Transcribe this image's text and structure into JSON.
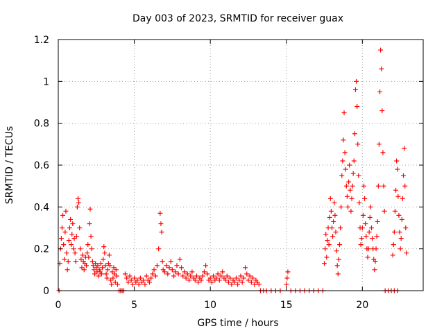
{
  "chart_data": {
    "type": "scatter",
    "title": "Day 003 of 2023, SRMTID for receiver guax",
    "xlabel": "GPS time / hours",
    "ylabel": "SRMTID / TECUs",
    "xlim": [
      0,
      24
    ],
    "ylim": [
      0,
      1.2
    ],
    "xticks": [
      0,
      5,
      10,
      15,
      20
    ],
    "xtick_labels": [
      "0",
      "5",
      "10",
      "15",
      "20"
    ],
    "yticks": [
      0,
      0.2,
      0.4,
      0.6,
      0.8,
      1,
      1.2
    ],
    "ytick_labels": [
      "0",
      "0.2",
      "0.4",
      "0.6",
      "0.8",
      "1",
      "1.2"
    ],
    "grid": true,
    "marker": "+",
    "series": [
      {
        "name": "SRMTID",
        "color": "#ff0000",
        "points": [
          [
            0.05,
            0.0
          ],
          [
            0.1,
            0.13
          ],
          [
            0.15,
            0.2
          ],
          [
            0.2,
            0.25
          ],
          [
            0.25,
            0.3
          ],
          [
            0.3,
            0.36
          ],
          [
            0.35,
            0.22
          ],
          [
            0.4,
            0.15
          ],
          [
            0.45,
            0.28
          ],
          [
            0.5,
            0.38
          ],
          [
            0.55,
            0.18
          ],
          [
            0.6,
            0.1
          ],
          [
            0.65,
            0.14
          ],
          [
            0.7,
            0.24
          ],
          [
            0.75,
            0.3
          ],
          [
            0.8,
            0.34
          ],
          [
            0.85,
            0.22
          ],
          [
            0.9,
            0.27
          ],
          [
            0.95,
            0.32
          ],
          [
            1.0,
            0.2
          ],
          [
            1.05,
            0.25
          ],
          [
            1.1,
            0.18
          ],
          [
            1.15,
            0.14
          ],
          [
            1.2,
            0.26
          ],
          [
            1.25,
            0.4
          ],
          [
            1.3,
            0.44
          ],
          [
            1.35,
            0.42
          ],
          [
            1.4,
            0.3
          ],
          [
            1.45,
            0.2
          ],
          [
            1.5,
            0.15
          ],
          [
            1.55,
            0.11
          ],
          [
            1.6,
            0.17
          ],
          [
            1.65,
            0.14
          ],
          [
            1.7,
            0.1
          ],
          [
            1.75,
            0.13
          ],
          [
            1.8,
            0.16
          ],
          [
            1.85,
            0.12
          ],
          [
            1.9,
            0.18
          ],
          [
            1.95,
            0.22
          ],
          [
            2.0,
            0.16
          ],
          [
            2.05,
            0.32
          ],
          [
            2.1,
            0.39
          ],
          [
            2.15,
            0.26
          ],
          [
            2.2,
            0.2
          ],
          [
            2.25,
            0.14
          ],
          [
            2.3,
            0.12
          ],
          [
            2.35,
            0.1
          ],
          [
            2.4,
            0.08
          ],
          [
            2.45,
            0.13
          ],
          [
            2.5,
            0.11
          ],
          [
            2.55,
            0.09
          ],
          [
            2.6,
            0.12
          ],
          [
            2.65,
            0.07
          ],
          [
            2.7,
            0.1
          ],
          [
            2.75,
            0.09
          ],
          [
            2.8,
            0.13
          ],
          [
            2.85,
            0.08
          ],
          [
            2.9,
            0.11
          ],
          [
            2.95,
            0.15
          ],
          [
            3.0,
            0.21
          ],
          [
            3.05,
            0.18
          ],
          [
            3.1,
            0.12
          ],
          [
            3.15,
            0.08
          ],
          [
            3.2,
            0.06
          ],
          [
            3.25,
            0.1
          ],
          [
            3.3,
            0.13
          ],
          [
            3.35,
            0.17
          ],
          [
            3.4,
            0.12
          ],
          [
            3.45,
            0.05
          ],
          [
            3.5,
            0.03
          ],
          [
            3.55,
            0.09
          ],
          [
            3.6,
            0.06
          ],
          [
            3.65,
            0.11
          ],
          [
            3.7,
            0.08
          ],
          [
            3.75,
            0.04
          ],
          [
            3.8,
            0.1
          ],
          [
            3.85,
            0.07
          ],
          [
            3.9,
            0.03
          ],
          [
            4.0,
            0.0
          ],
          [
            4.1,
            0.0
          ],
          [
            4.2,
            0.0
          ],
          [
            4.3,
            0.0
          ],
          [
            4.4,
            0.08
          ],
          [
            4.5,
            0.06
          ],
          [
            4.6,
            0.04
          ],
          [
            4.7,
            0.07
          ],
          [
            4.8,
            0.05
          ],
          [
            4.9,
            0.03
          ],
          [
            5.0,
            0.06
          ],
          [
            5.1,
            0.04
          ],
          [
            5.2,
            0.05
          ],
          [
            5.3,
            0.03
          ],
          [
            5.4,
            0.06
          ],
          [
            5.5,
            0.04
          ],
          [
            5.6,
            0.05
          ],
          [
            5.7,
            0.03
          ],
          [
            5.8,
            0.07
          ],
          [
            5.9,
            0.05
          ],
          [
            6.0,
            0.04
          ],
          [
            6.1,
            0.06
          ],
          [
            6.2,
            0.08
          ],
          [
            6.3,
            0.1
          ],
          [
            6.4,
            0.07
          ],
          [
            6.5,
            0.12
          ],
          [
            6.6,
            0.2
          ],
          [
            6.7,
            0.37
          ],
          [
            6.75,
            0.32
          ],
          [
            6.8,
            0.28
          ],
          [
            6.85,
            0.14
          ],
          [
            6.9,
            0.1
          ],
          [
            7.0,
            0.09
          ],
          [
            7.1,
            0.12
          ],
          [
            7.2,
            0.08
          ],
          [
            7.3,
            0.11
          ],
          [
            7.4,
            0.14
          ],
          [
            7.5,
            0.1
          ],
          [
            7.6,
            0.07
          ],
          [
            7.7,
            0.09
          ],
          [
            7.8,
            0.12
          ],
          [
            7.9,
            0.08
          ],
          [
            8.0,
            0.15
          ],
          [
            8.1,
            0.11
          ],
          [
            8.2,
            0.07
          ],
          [
            8.3,
            0.09
          ],
          [
            8.4,
            0.06
          ],
          [
            8.5,
            0.08
          ],
          [
            8.6,
            0.05
          ],
          [
            8.7,
            0.07
          ],
          [
            8.8,
            0.09
          ],
          [
            8.9,
            0.06
          ],
          [
            9.0,
            0.05
          ],
          [
            9.1,
            0.07
          ],
          [
            9.2,
            0.04
          ],
          [
            9.3,
            0.06
          ],
          [
            9.4,
            0.05
          ],
          [
            9.5,
            0.07
          ],
          [
            9.6,
            0.09
          ],
          [
            9.7,
            0.12
          ],
          [
            9.8,
            0.08
          ],
          [
            9.9,
            0.05
          ],
          [
            10.0,
            0.06
          ],
          [
            10.1,
            0.04
          ],
          [
            10.2,
            0.07
          ],
          [
            10.3,
            0.05
          ],
          [
            10.4,
            0.06
          ],
          [
            10.5,
            0.08
          ],
          [
            10.6,
            0.05
          ],
          [
            10.7,
            0.07
          ],
          [
            10.8,
            0.09
          ],
          [
            10.9,
            0.06
          ],
          [
            11.0,
            0.05
          ],
          [
            11.1,
            0.07
          ],
          [
            11.2,
            0.04
          ],
          [
            11.3,
            0.06
          ],
          [
            11.4,
            0.03
          ],
          [
            11.5,
            0.05
          ],
          [
            11.6,
            0.04
          ],
          [
            11.7,
            0.06
          ],
          [
            11.8,
            0.03
          ],
          [
            11.9,
            0.05
          ],
          [
            12.0,
            0.07
          ],
          [
            12.1,
            0.04
          ],
          [
            12.2,
            0.06
          ],
          [
            12.3,
            0.11
          ],
          [
            12.4,
            0.08
          ],
          [
            12.5,
            0.05
          ],
          [
            12.6,
            0.07
          ],
          [
            12.7,
            0.04
          ],
          [
            12.8,
            0.06
          ],
          [
            12.9,
            0.03
          ],
          [
            13.0,
            0.05
          ],
          [
            13.1,
            0.04
          ],
          [
            13.2,
            0.03
          ],
          [
            13.3,
            0.0
          ],
          [
            13.5,
            0.0
          ],
          [
            13.7,
            0.0
          ],
          [
            14.0,
            0.0
          ],
          [
            14.3,
            0.0
          ],
          [
            14.6,
            0.0
          ],
          [
            15.0,
            0.03
          ],
          [
            15.05,
            0.06
          ],
          [
            15.1,
            0.09
          ],
          [
            15.3,
            0.0
          ],
          [
            15.6,
            0.0
          ],
          [
            15.9,
            0.0
          ],
          [
            16.2,
            0.0
          ],
          [
            16.5,
            0.0
          ],
          [
            16.8,
            0.0
          ],
          [
            17.1,
            0.0
          ],
          [
            17.4,
            0.0
          ],
          [
            17.5,
            0.13
          ],
          [
            17.55,
            0.2
          ],
          [
            17.6,
            0.27
          ],
          [
            17.65,
            0.16
          ],
          [
            17.7,
            0.24
          ],
          [
            17.75,
            0.3
          ],
          [
            17.8,
            0.22
          ],
          [
            17.85,
            0.35
          ],
          [
            17.9,
            0.44
          ],
          [
            17.95,
            0.38
          ],
          [
            18.0,
            0.3
          ],
          [
            18.05,
            0.26
          ],
          [
            18.1,
            0.33
          ],
          [
            18.15,
            0.42
          ],
          [
            18.2,
            0.36
          ],
          [
            18.25,
            0.28
          ],
          [
            18.3,
            0.19
          ],
          [
            18.35,
            0.12
          ],
          [
            18.4,
            0.08
          ],
          [
            18.45,
            0.15
          ],
          [
            18.5,
            0.22
          ],
          [
            18.55,
            0.3
          ],
          [
            18.6,
            0.4
          ],
          [
            18.65,
            0.55
          ],
          [
            18.7,
            0.62
          ],
          [
            18.75,
            0.72
          ],
          [
            18.8,
            0.85
          ],
          [
            18.85,
            0.66
          ],
          [
            18.9,
            0.58
          ],
          [
            18.95,
            0.5
          ],
          [
            19.0,
            0.45
          ],
          [
            19.05,
            0.4
          ],
          [
            19.1,
            0.52
          ],
          [
            19.15,
            0.6
          ],
          [
            19.2,
            0.48
          ],
          [
            19.25,
            0.38
          ],
          [
            19.3,
            0.44
          ],
          [
            19.35,
            0.5
          ],
          [
            19.4,
            0.56
          ],
          [
            19.45,
            0.62
          ],
          [
            19.5,
            0.75
          ],
          [
            19.55,
            0.96
          ],
          [
            19.6,
            1.0
          ],
          [
            19.65,
            0.88
          ],
          [
            19.7,
            0.7
          ],
          [
            19.75,
            0.55
          ],
          [
            19.8,
            0.42
          ],
          [
            19.85,
            0.3
          ],
          [
            19.9,
            0.22
          ],
          [
            19.95,
            0.25
          ],
          [
            20.0,
            0.3
          ],
          [
            20.05,
            0.36
          ],
          [
            20.1,
            0.5
          ],
          [
            20.15,
            0.44
          ],
          [
            20.2,
            0.32
          ],
          [
            20.25,
            0.26
          ],
          [
            20.3,
            0.2
          ],
          [
            20.35,
            0.16
          ],
          [
            20.4,
            0.2
          ],
          [
            20.45,
            0.28
          ],
          [
            20.5,
            0.35
          ],
          [
            20.55,
            0.4
          ],
          [
            20.6,
            0.3
          ],
          [
            20.65,
            0.25
          ],
          [
            20.7,
            0.2
          ],
          [
            20.75,
            0.15
          ],
          [
            20.8,
            0.1
          ],
          [
            20.85,
            0.14
          ],
          [
            20.9,
            0.2
          ],
          [
            20.95,
            0.26
          ],
          [
            21.0,
            0.33
          ],
          [
            21.05,
            0.5
          ],
          [
            21.1,
            0.7
          ],
          [
            21.15,
            0.95
          ],
          [
            21.2,
            1.15
          ],
          [
            21.25,
            1.06
          ],
          [
            21.3,
            0.86
          ],
          [
            21.35,
            0.66
          ],
          [
            21.4,
            0.5
          ],
          [
            21.45,
            0.38
          ],
          [
            21.5,
            0.0
          ],
          [
            21.7,
            0.0
          ],
          [
            21.9,
            0.0
          ],
          [
            22.1,
            0.0
          ],
          [
            22.3,
            0.0
          ],
          [
            22.0,
            0.17
          ],
          [
            22.05,
            0.22
          ],
          [
            22.1,
            0.28
          ],
          [
            22.15,
            0.38
          ],
          [
            22.2,
            0.48
          ],
          [
            22.25,
            0.62
          ],
          [
            22.3,
            0.58
          ],
          [
            22.35,
            0.45
          ],
          [
            22.4,
            0.36
          ],
          [
            22.45,
            0.28
          ],
          [
            22.5,
            0.2
          ],
          [
            22.55,
            0.25
          ],
          [
            22.6,
            0.34
          ],
          [
            22.65,
            0.44
          ],
          [
            22.7,
            0.55
          ],
          [
            22.75,
            0.68
          ],
          [
            22.8,
            0.5
          ],
          [
            22.85,
            0.3
          ],
          [
            22.9,
            0.18
          ]
        ]
      }
    ]
  }
}
